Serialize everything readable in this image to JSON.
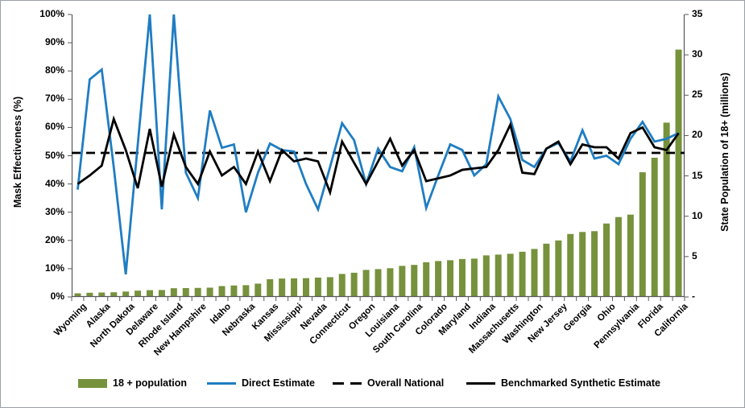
{
  "chart_data": {
    "type": "composite-bar-line",
    "title": "",
    "categories": [
      "Wyoming",
      "",
      "Alaska",
      "",
      "North Dakota",
      "",
      "Delaware",
      "",
      "Rhode Island",
      "",
      "New Hampshire",
      "",
      "Idaho",
      "",
      "Nebraska",
      "",
      "Kansas",
      "",
      "Mississippi",
      "",
      "Nevada",
      "",
      "Connecticut",
      "",
      "Oregon",
      "",
      "Louisiana",
      "",
      "South Carolina",
      "",
      "Colorado",
      "",
      "Maryland",
      "",
      "Indiana",
      "",
      "Massachusetts",
      "",
      "Washington",
      "",
      "New Jersey",
      "",
      "Georgia",
      "",
      "Ohio",
      "",
      "Pennsylvania",
      "",
      "Florida",
      "",
      "California"
    ],
    "series": [
      {
        "name": "18 + population",
        "type": "bar",
        "axis": "right",
        "color": "#76923C",
        "values": [
          0.45,
          0.52,
          0.55,
          0.58,
          0.67,
          0.78,
          0.84,
          0.86,
          1.08,
          1.1,
          1.12,
          1.15,
          1.35,
          1.42,
          1.46,
          1.65,
          2.2,
          2.28,
          2.3,
          2.33,
          2.4,
          2.45,
          2.85,
          3.0,
          3.35,
          3.45,
          3.56,
          3.85,
          3.97,
          4.3,
          4.45,
          4.55,
          4.7,
          4.75,
          5.15,
          5.25,
          5.35,
          5.6,
          5.95,
          6.6,
          7.0,
          7.8,
          8.05,
          8.15,
          9.1,
          9.9,
          10.2,
          15.45,
          17.25,
          21.6,
          30.65
        ]
      },
      {
        "name": "Direct Estimate",
        "type": "line",
        "axis": "left",
        "color": "#1F7DC2",
        "values": [
          38,
          77,
          80.5,
          46,
          8,
          54,
          100,
          31,
          100,
          44,
          35,
          66,
          52.8,
          54,
          30,
          44,
          54.3,
          52,
          51.5,
          40,
          31,
          46,
          61.5,
          55.5,
          40,
          52.5,
          46,
          44.5,
          53,
          31.5,
          43,
          54,
          52,
          43,
          47,
          71,
          63,
          48.5,
          46,
          52.5,
          54.5,
          48,
          59,
          49,
          50,
          47,
          56,
          62,
          55,
          56,
          58
        ]
      },
      {
        "name": "Overall National",
        "type": "dashed-line",
        "axis": "left",
        "color": "#000000",
        "value": 51
      },
      {
        "name": "Benchmarked Synthetic Estimate",
        "type": "line",
        "axis": "left",
        "color": "#000000",
        "values": [
          40,
          43,
          46.5,
          63,
          52,
          38.5,
          59.5,
          39,
          57.5,
          46,
          40,
          51.5,
          43,
          46,
          40,
          51.5,
          41,
          52,
          48,
          49,
          48,
          37,
          55,
          47.5,
          40,
          48,
          56,
          46.5,
          52,
          41,
          42,
          43,
          45,
          45.5,
          46,
          52,
          61,
          44,
          43.5,
          52.5,
          55,
          47,
          54,
          53,
          53,
          49,
          58,
          60,
          53,
          52,
          58
        ]
      }
    ],
    "left_axis": {
      "label": "Mask Effectiveness (%)",
      "min": 0,
      "max": 100,
      "ticks": [
        "0%",
        "10%",
        "20%",
        "30%",
        "40%",
        "50%",
        "60%",
        "70%",
        "80%",
        "90%",
        "100%"
      ]
    },
    "right_axis": {
      "label": "State Population of 18+  (millions)",
      "min": 0,
      "max": 35,
      "ticks": [
        "-",
        "5",
        "10",
        "15",
        "20",
        "25",
        "30",
        "35"
      ]
    },
    "grid": "off",
    "legend_position": "bottom"
  },
  "legend": {
    "items": [
      {
        "label": "18 + population",
        "marker": "bar-swatch"
      },
      {
        "label": "Direct Estimate",
        "marker": "blue-line"
      },
      {
        "label": "Overall National",
        "marker": "black-dashes"
      },
      {
        "label": "Benchmarked Synthetic Estimate",
        "marker": "black-line"
      }
    ]
  },
  "colors": {
    "bar": "#76923C",
    "direct": "#1F7DC2",
    "synthetic": "#000000",
    "national": "#000000",
    "axis": "#595959"
  }
}
